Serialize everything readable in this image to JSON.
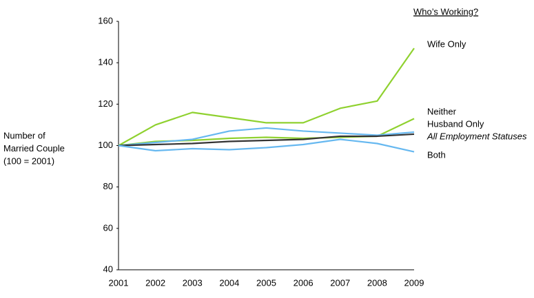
{
  "chart_data": {
    "type": "line",
    "legend_title": "Who’s Working?",
    "y_label": [
      "Number of",
      "Married Couple",
      "(100 = 2001)"
    ],
    "categories": [
      "2001",
      "2002",
      "2003",
      "2004",
      "2005",
      "2006",
      "2007",
      "2008",
      "2009"
    ],
    "ylim": [
      40,
      160
    ],
    "yticks": [
      40,
      60,
      80,
      100,
      120,
      140,
      160
    ],
    "series": [
      {
        "name": "Wife Only",
        "color": "#8fd12f",
        "values": [
          100,
          110,
          116,
          113.5,
          111,
          111,
          118,
          121.5,
          147
        ]
      },
      {
        "name": "Neither",
        "color": "#8fd12f",
        "values": [
          100,
          102,
          102.5,
          103.5,
          104,
          103.5,
          104,
          104.5,
          113
        ]
      },
      {
        "name": "Husband Only",
        "color": "#66b8f0",
        "values": [
          100,
          101.5,
          103,
          107,
          108.5,
          107,
          106,
          105,
          106.5
        ]
      },
      {
        "name": "All Employment Statuses",
        "color": "#333333",
        "values": [
          100,
          100.5,
          101,
          102,
          102.5,
          103,
          104.5,
          104.5,
          105.5
        ]
      },
      {
        "name": "Both",
        "color": "#66b8f0",
        "values": [
          100,
          97.5,
          98.5,
          98,
          99,
          100.5,
          103,
          101,
          97
        ]
      }
    ]
  }
}
